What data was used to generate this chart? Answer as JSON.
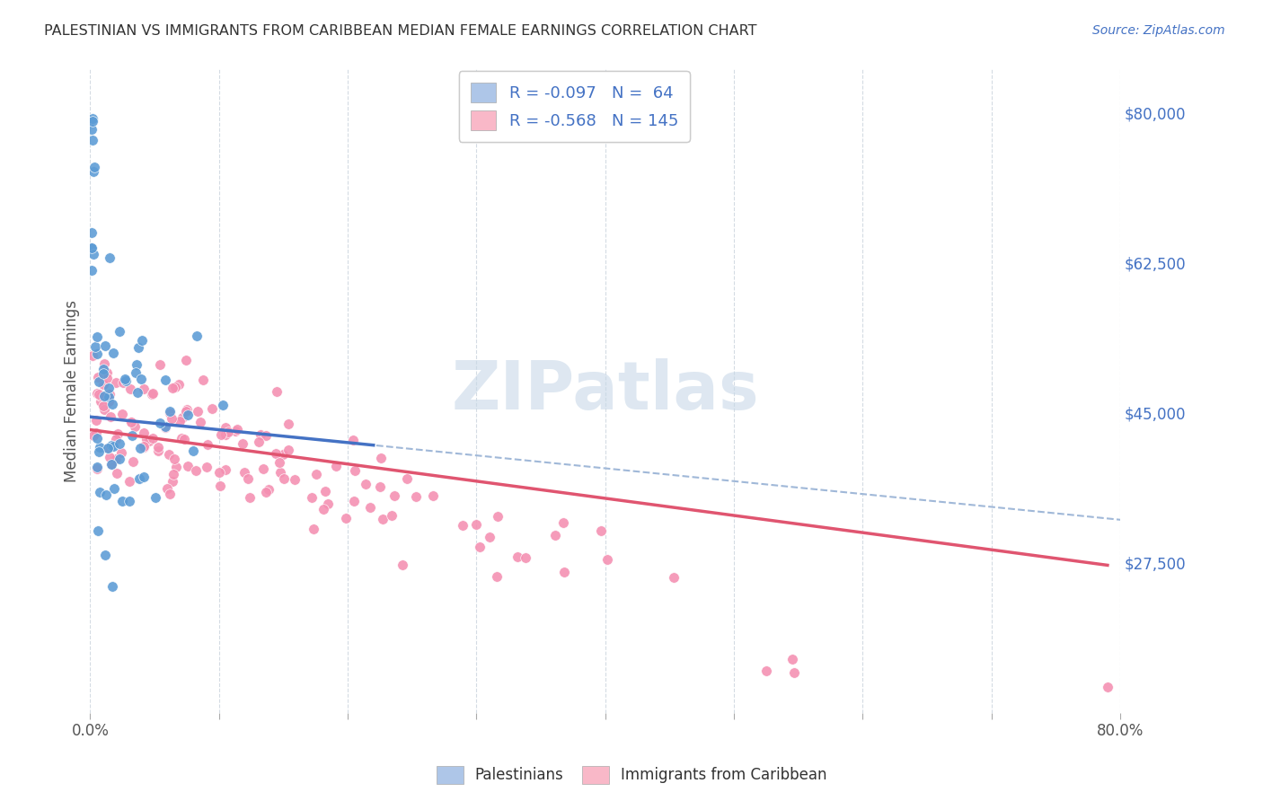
{
  "title": "PALESTINIAN VS IMMIGRANTS FROM CARIBBEAN MEDIAN FEMALE EARNINGS CORRELATION CHART",
  "source": "Source: ZipAtlas.com",
  "ylabel": "Median Female Earnings",
  "xlim": [
    0.0,
    0.8
  ],
  "ylim": [
    10000,
    85000
  ],
  "yticks": [
    27500,
    45000,
    62500,
    80000
  ],
  "ytick_labels": [
    "$27,500",
    "$45,000",
    "$62,500",
    "$80,000"
  ],
  "xtick_positions": [
    0.0,
    0.1,
    0.2,
    0.3,
    0.4,
    0.5,
    0.6,
    0.7,
    0.8
  ],
  "xtick_labels": [
    "0.0%",
    "",
    "",
    "",
    "",
    "",
    "",
    "",
    "80.0%"
  ],
  "palestinians_color": "#5b9bd5",
  "palestinians_legend_color": "#aec6e8",
  "caribbeans_color": "#f48fb1",
  "caribbeans_legend_color": "#f9b8c8",
  "trendline_blue_color": "#4472c4",
  "trendline_pink_color": "#e05570",
  "trendline_dashed_color": "#a0b8d8",
  "background_color": "#ffffff",
  "grid_color": "#d0d8e0",
  "title_color": "#333333",
  "axis_label_color": "#555555",
  "right_tick_color": "#4472c4",
  "legend_text_color": "#4472c4",
  "watermark_color": "#c8d8e8",
  "R_pal": -0.097,
  "N_pal": 64,
  "R_car": -0.568,
  "N_car": 145
}
